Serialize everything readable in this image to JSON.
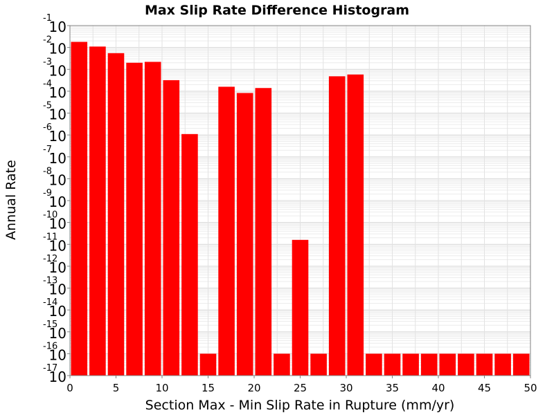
{
  "chart_data": {
    "type": "bar",
    "title": "Max Slip Rate Difference Histogram",
    "xlabel": "Section Max - Min Slip Rate in Rupture (mm/yr)",
    "ylabel": "Annual Rate",
    "log_y": true,
    "grid": true,
    "bar_color": "#ff0000",
    "xlim": [
      0,
      50
    ],
    "ylim": [
      1e-17,
      0.1
    ],
    "x_ticks": [
      "0",
      "5",
      "10",
      "15",
      "20",
      "25",
      "30",
      "35",
      "40",
      "45",
      "50"
    ],
    "y_ticks": [
      {
        "base": "10",
        "exp": "-1"
      },
      {
        "base": "10",
        "exp": "-2"
      },
      {
        "base": "10",
        "exp": "-3"
      },
      {
        "base": "10",
        "exp": "-4"
      },
      {
        "base": "10",
        "exp": "-5"
      },
      {
        "base": "10",
        "exp": "-6"
      },
      {
        "base": "10",
        "exp": "-7"
      },
      {
        "base": "10",
        "exp": "-8"
      },
      {
        "base": "10",
        "exp": "-9"
      },
      {
        "base": "10",
        "exp": "-10"
      },
      {
        "base": "10",
        "exp": "-11"
      },
      {
        "base": "10",
        "exp": "-12"
      },
      {
        "base": "10",
        "exp": "-13"
      },
      {
        "base": "10",
        "exp": "-14"
      },
      {
        "base": "10",
        "exp": "-15"
      },
      {
        "base": "10",
        "exp": "-16"
      },
      {
        "base": "10",
        "exp": "-17"
      }
    ],
    "bin_width": 2,
    "x": [
      1,
      3,
      5,
      7,
      9,
      11,
      13,
      15,
      17,
      19,
      21,
      23,
      25,
      27,
      29,
      31,
      33,
      35,
      37,
      39,
      41,
      43,
      45,
      47,
      49
    ],
    "values": [
      0.018,
      0.011,
      0.0055,
      0.002,
      0.0022,
      0.00032,
      1.1e-06,
      1e-16,
      0.00016,
      8.3e-05,
      0.00014,
      1e-16,
      1.6e-11,
      1e-16,
      0.00048,
      0.00058,
      1e-16,
      1e-16,
      1e-16,
      1e-16,
      1e-16,
      1e-16,
      1e-16,
      1e-16,
      1e-16
    ]
  }
}
